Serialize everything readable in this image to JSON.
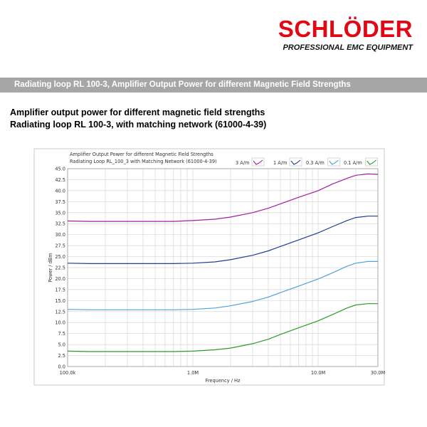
{
  "brand": {
    "name": "SCHLÖDER",
    "tagline": "PROFESSIONAL EMC EQUIPMENT",
    "color": "#e30613"
  },
  "banner": {
    "text": "Radiating loop RL 100-3, Amplifier Output Power for different Magnetic Field Strengths",
    "background": "#a6a6a6"
  },
  "heading": {
    "line1": "Amplifier output power for different magnetic field strengths",
    "line2": "Radiating loop RL 100-3, with matching network (61000-4-39)"
  },
  "chart_data": {
    "type": "line",
    "title": "Amplifier Output Power for different Magnetic Field Strengths",
    "subtitle": "Radiating Loop RL_100_3 with Matching Network (61000-4-39)",
    "xlabel": "Frequency / Hz",
    "ylabel": "Power / dBm",
    "xscale": "log",
    "xlim": [
      100000,
      30000000
    ],
    "ylim": [
      0,
      45
    ],
    "grid": true,
    "legend_position": "top-right",
    "x_tick_values": [
      100000,
      1000000,
      10000000,
      30000000
    ],
    "x_tick_labels": [
      "100.0k",
      "1.0M",
      "10.0M",
      "30.0M"
    ],
    "y_ticks": [
      0.0,
      2.5,
      5.0,
      7.5,
      10.0,
      12.5,
      15.0,
      17.5,
      20.0,
      22.5,
      25.0,
      27.5,
      30.0,
      32.5,
      35.0,
      37.5,
      40.0,
      42.5,
      45.0
    ],
    "x": [
      100000,
      150000,
      200000,
      300000,
      500000,
      700000,
      1000000,
      1500000,
      2000000,
      3000000,
      4000000,
      5000000,
      7000000,
      10000000,
      13000000,
      17000000,
      20000000,
      25000000,
      30000000
    ],
    "series": [
      {
        "name": "3 A/m",
        "color": "#a020a0",
        "values": [
          33.1,
          33.0,
          33.0,
          33.0,
          33.0,
          33.0,
          33.2,
          33.5,
          34.0,
          35.0,
          36.0,
          37.0,
          38.5,
          40.0,
          41.5,
          42.8,
          43.5,
          43.8,
          43.7
        ]
      },
      {
        "name": "1 A/m",
        "color": "#1f3f8f",
        "values": [
          23.5,
          23.4,
          23.4,
          23.4,
          23.4,
          23.4,
          23.5,
          23.8,
          24.3,
          25.3,
          26.3,
          27.3,
          28.8,
          30.4,
          31.8,
          33.2,
          33.9,
          34.2,
          34.2
        ]
      },
      {
        "name": "0.3 A/m",
        "color": "#4fa3d9",
        "values": [
          13.0,
          12.9,
          12.9,
          12.9,
          12.9,
          12.9,
          13.0,
          13.3,
          13.8,
          14.8,
          15.8,
          16.8,
          18.3,
          19.9,
          21.3,
          22.8,
          23.5,
          23.9,
          23.9
        ]
      },
      {
        "name": "0.1 A/m",
        "color": "#2e9a2e",
        "values": [
          3.5,
          3.4,
          3.4,
          3.4,
          3.4,
          3.4,
          3.5,
          3.8,
          4.2,
          5.2,
          6.2,
          7.3,
          8.8,
          10.4,
          11.8,
          13.3,
          14.0,
          14.3,
          14.3
        ]
      }
    ]
  }
}
